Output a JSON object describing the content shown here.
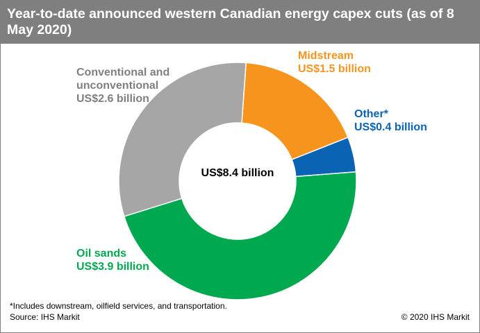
{
  "header": {
    "title": "Year-to-date announced western Canadian energy capex cuts (as of 8 May 2020)"
  },
  "chart_data": {
    "type": "pie",
    "style": "donut",
    "title": "Year-to-date announced western Canadian energy capex cuts (as of 8 May 2020)",
    "total_label": "US$8.4 billion",
    "unit": "US$ billion",
    "slices": [
      {
        "name": "Midstream",
        "value": 1.5,
        "value_label": "US$1.5 billion",
        "color": "#f7941d"
      },
      {
        "name": "Other*",
        "value": 0.4,
        "value_label": "US$0.4 billion",
        "color": "#0b63b4"
      },
      {
        "name": "Oil sands",
        "value": 3.9,
        "value_label": "US$3.9 billion",
        "color": "#00a94f"
      },
      {
        "name": "Conventional and unconventional",
        "name_lines": [
          "Conventional and",
          "unconventional"
        ],
        "value": 2.6,
        "value_label": "US$2.6 billion",
        "color": "#a6a6a6"
      }
    ],
    "legend": "none",
    "grid": false
  },
  "footer": {
    "footnote": "*Includes downstream, oilfield services, and transportation.",
    "source": "Source: IHS Markit",
    "copyright": "© 2020 IHS Markit"
  }
}
